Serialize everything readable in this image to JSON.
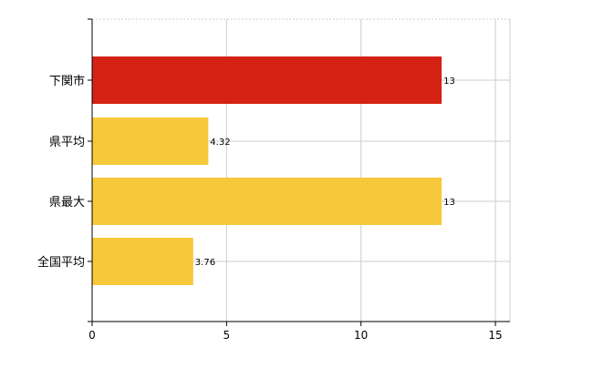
{
  "chart_data": {
    "type": "bar",
    "orientation": "horizontal",
    "categories": [
      "下関市",
      "県平均",
      "県最大",
      "全国平均"
    ],
    "values": [
      13,
      4.32,
      13,
      3.76
    ],
    "value_labels": [
      "13",
      "4.32",
      "13",
      "3.76"
    ],
    "bar_colors": [
      "#d42214",
      "#f7c83a",
      "#f7c83a",
      "#f7c83a"
    ],
    "xlim": [
      0,
      15.5
    ],
    "xticks": [
      0,
      5,
      10,
      15
    ],
    "xtick_labels": [
      "0",
      "5",
      "10",
      "15"
    ],
    "grid": true,
    "legend": "none",
    "title": "",
    "xlabel": "",
    "ylabel": ""
  },
  "colors": {
    "highlight": "#d42214",
    "default_bar": "#f7c83a",
    "grid": "#cccccc",
    "axis": "#000000"
  }
}
